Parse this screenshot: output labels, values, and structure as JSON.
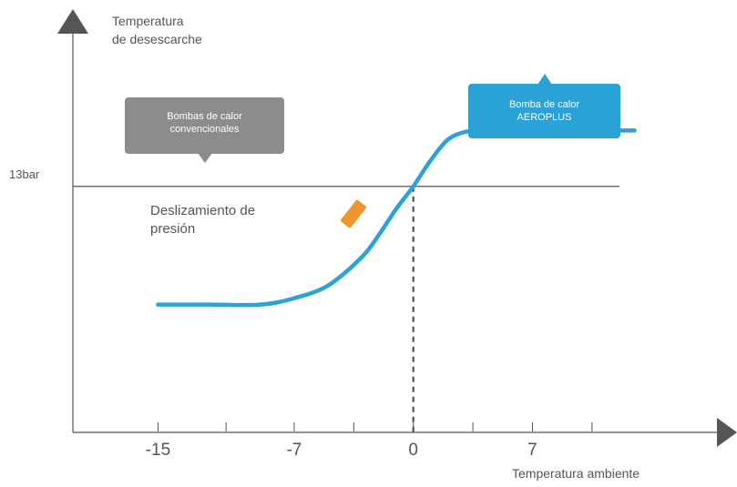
{
  "chart_data": {
    "type": "line",
    "ylabel_lines": [
      "Temperatura",
      "de desescarche"
    ],
    "xlabel": "Temperatura ambiente",
    "x_ticks": [
      -15,
      -7,
      0,
      7
    ],
    "reference_line_label": "13bar",
    "region_label_lines": [
      "Deslizamiento de",
      "presión"
    ],
    "series": [
      {
        "color": "#2ba3d8",
        "x": [
          -15,
          -12,
          -9,
          -7,
          -5,
          -3,
          -2,
          -1,
          0,
          1,
          2,
          3,
          4,
          5,
          7,
          10,
          13
        ],
        "y": [
          0.0,
          0.0,
          0.0,
          0.04,
          0.12,
          0.3,
          0.44,
          0.6,
          0.74,
          0.9,
          1.03,
          1.08,
          1.09,
          1.09,
          1.09,
          1.09,
          1.09
        ]
      }
    ],
    "reference_y": 0.74,
    "vertical_reference_x": 0,
    "xlim": [
      -20,
      18
    ],
    "ylim": [
      -0.8,
      1.85
    ],
    "grid": false
  },
  "callouts": {
    "conventional": "Bombas de calor convencionales",
    "aeroplus": "Bomba de calor AEROPLUS"
  },
  "colors": {
    "axis": "#555555",
    "highlight_marker": "#f0952e",
    "gray_box": "#8c8c8c",
    "blue_box": "#2aa2d7"
  }
}
